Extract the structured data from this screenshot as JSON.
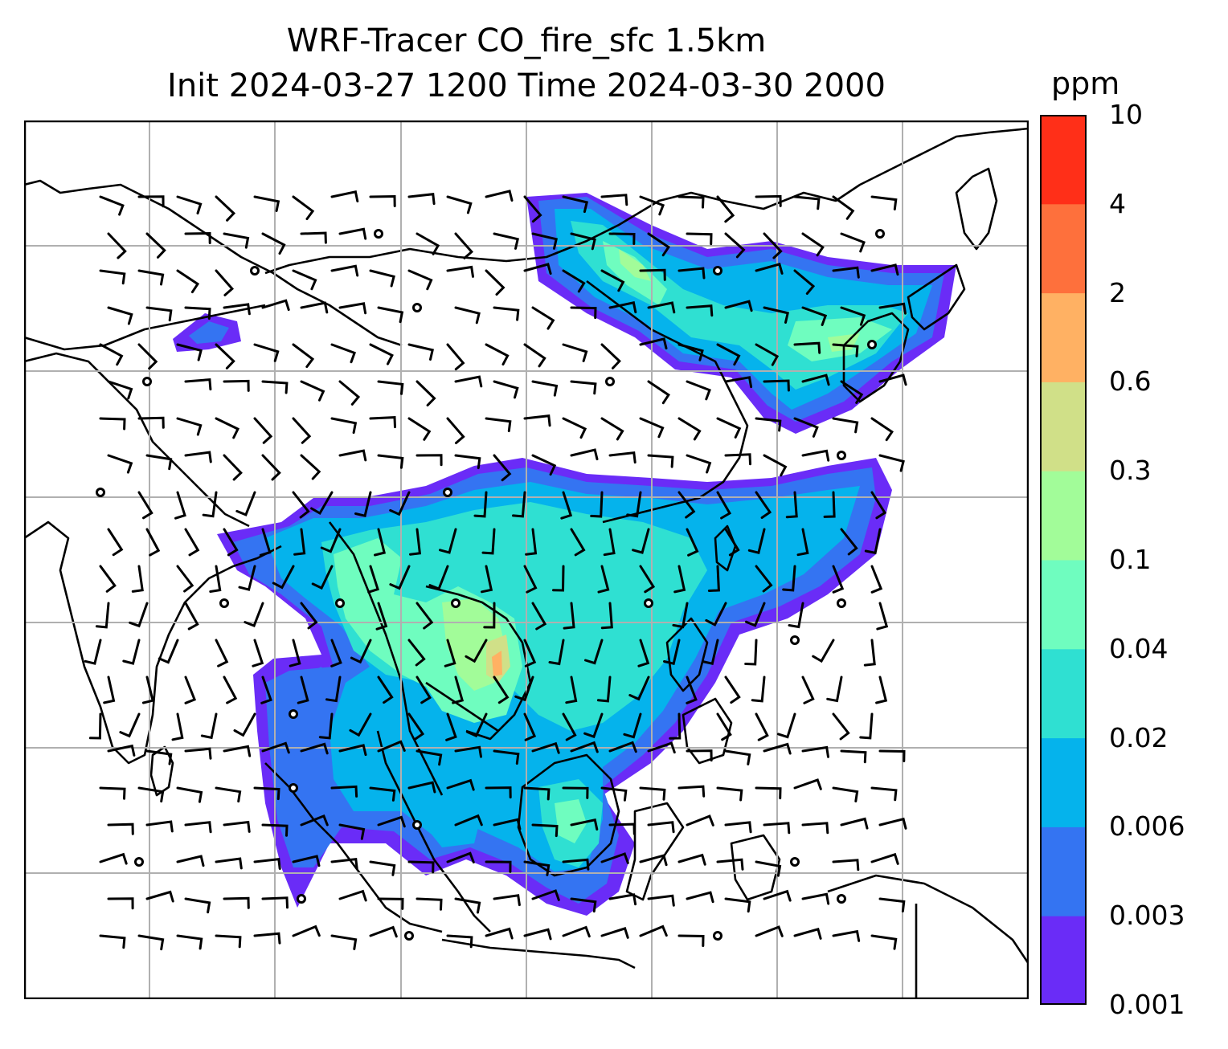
{
  "title": {
    "line1": "WRF-Tracer CO_fire_sfc 1.5km",
    "line2": "Init 2024-03-27 1200 Time 2024-03-30 2000"
  },
  "colorbar": {
    "unit": "ppm",
    "levels": [
      "0.001",
      "0.003",
      "0.006",
      "0.02",
      "0.04",
      "0.1",
      "0.3",
      "0.6",
      "2",
      "4",
      "10"
    ],
    "colors": [
      "#6a2cf7",
      "#3474f2",
      "#05b3ec",
      "#2fe0d2",
      "#6ffdbf",
      "#a2fc99",
      "#d0e088",
      "#ffb163",
      "#fe703c",
      "#ff2f18"
    ]
  },
  "map": {
    "gridlines": true,
    "coastline_color": "#000000",
    "gridline_color": "#b0b0b0",
    "wind_barbs": true,
    "calm_markers": true
  }
}
